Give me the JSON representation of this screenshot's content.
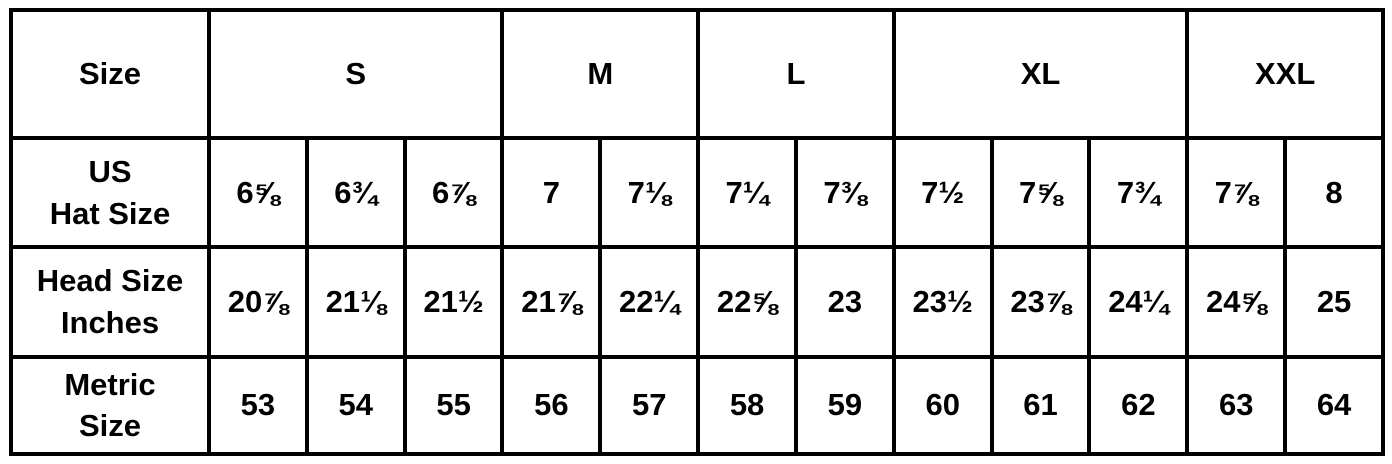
{
  "table": {
    "header_label": "Size",
    "sizes": [
      {
        "label": "S",
        "span": 3
      },
      {
        "label": "M",
        "span": 2
      },
      {
        "label": "L",
        "span": 2
      },
      {
        "label": "XL",
        "span": 3
      },
      {
        "label": "XXL",
        "span": 2
      }
    ],
    "rows": [
      {
        "label_lines": [
          "US",
          "Hat Size"
        ],
        "values": [
          "6⅝",
          "6¾",
          "6⅞",
          "7",
          "7⅛",
          "7¼",
          "7⅜",
          "7½",
          "7⅝",
          "7¾",
          "7⅞",
          "8"
        ]
      },
      {
        "label_lines": [
          "Head Size",
          "Inches"
        ],
        "values": [
          "20⅞",
          "21⅛",
          "21½",
          "21⅞",
          "22¼",
          "22⅝",
          "23",
          "23½",
          "23⅞",
          "24¼",
          "24⅝",
          "25"
        ]
      },
      {
        "label_lines": [
          "Metric",
          "Size"
        ],
        "values": [
          "53",
          "54",
          "55",
          "56",
          "57",
          "58",
          "59",
          "60",
          "61",
          "62",
          "63",
          "64"
        ]
      }
    ]
  }
}
